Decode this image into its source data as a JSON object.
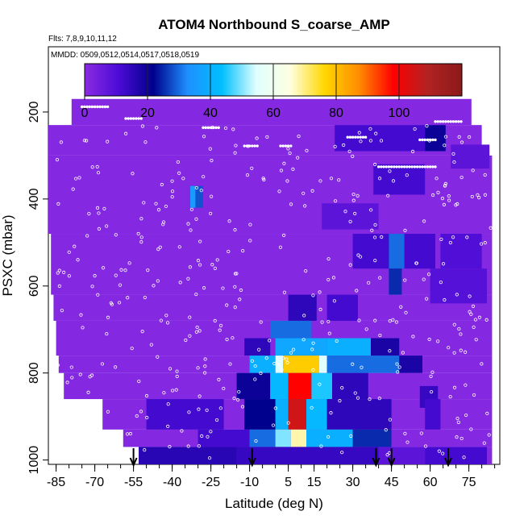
{
  "chart_data": {
    "type": "heatmap",
    "title": "ATOM4 Northbound S_coarse_AMP",
    "flights_note": "Flts: 7,8,9,10,11,12",
    "dates_note": "MMDD: 0509,0512,0514,0517,0518,0519",
    "xlabel": "Latitude (deg N)",
    "ylabel": "PSXC (mbar)",
    "xlim": [
      -88,
      87
    ],
    "ylim": [
      1010,
      50
    ],
    "y_reversed": true,
    "x_ticks": [
      "-85",
      "-70",
      "-55",
      "-40",
      "-25",
      "-10",
      "5",
      "15",
      "30",
      "45",
      "60",
      "75"
    ],
    "x_tick_values": [
      -85,
      -70,
      -55,
      -40,
      -25,
      -10,
      5,
      15,
      30,
      45,
      60,
      75
    ],
    "x_minor_step": 5,
    "y_ticks": [
      "200",
      "400",
      "600",
      "800",
      "1000"
    ],
    "y_tick_values": [
      200,
      400,
      600,
      800,
      1000
    ],
    "colorbar": {
      "min": 0,
      "max": 120,
      "ticks": [
        "0",
        "20",
        "40",
        "60",
        "80",
        "100"
      ],
      "tick_values": [
        0,
        20,
        40,
        60,
        80,
        100
      ],
      "colors": [
        "#8a2be2",
        "#4b0bd6",
        "#00008b",
        "#1e90ff",
        "#00bfff",
        "#e0ffff",
        "#ffffe0",
        "#ffd700",
        "#ff8c00",
        "#ff0000",
        "#b22222",
        "#8b1a1a"
      ]
    },
    "background_value": 1,
    "layers": [
      {
        "p": [
          170,
          230
        ],
        "x": [
          -79,
          76
        ]
      },
      {
        "p": [
          230,
          300
        ],
        "x": [
          -88,
          80
        ]
      },
      {
        "p": [
          300,
          480
        ],
        "x": [
          -88,
          84
        ]
      },
      {
        "p": [
          480,
          620
        ],
        "x": [
          -87,
          84
        ]
      },
      {
        "p": [
          620,
          680
        ],
        "x": [
          -86,
          84
        ]
      },
      {
        "p": [
          680,
          760
        ],
        "x": [
          -85,
          84
        ]
      },
      {
        "p": [
          760,
          800
        ],
        "x": [
          -84,
          84
        ]
      },
      {
        "p": [
          800,
          860
        ],
        "x": [
          -82,
          84
        ]
      },
      {
        "p": [
          860,
          930
        ],
        "x": [
          -67,
          84
        ]
      },
      {
        "p": [
          930,
          970
        ],
        "x": [
          -59,
          84
        ]
      },
      {
        "p": [
          970,
          1010
        ],
        "x": [
          -53,
          84
        ]
      }
    ],
    "patches": [
      {
        "x": [
          -33,
          -28
        ],
        "p": [
          370,
          420
        ],
        "v": 28
      },
      {
        "x": [
          -33,
          -31
        ],
        "p": [
          370,
          420
        ],
        "v": 35
      },
      {
        "x": [
          23,
          59
        ],
        "p": [
          230,
          290
        ],
        "v": 12
      },
      {
        "x": [
          58,
          66
        ],
        "p": [
          230,
          290
        ],
        "v": 20
      },
      {
        "x": [
          68,
          83
        ],
        "p": [
          275,
          330
        ],
        "v": 8
      },
      {
        "x": [
          38,
          58
        ],
        "p": [
          320,
          390
        ],
        "v": 12
      },
      {
        "x": [
          18,
          40
        ],
        "p": [
          410,
          470
        ],
        "v": 8
      },
      {
        "x": [
          30,
          62
        ],
        "p": [
          480,
          560
        ],
        "v": 12
      },
      {
        "x": [
          44,
          50
        ],
        "p": [
          480,
          560
        ],
        "v": 30
      },
      {
        "x": [
          64,
          80
        ],
        "p": [
          480,
          560
        ],
        "v": 10
      },
      {
        "x": [
          44,
          49
        ],
        "p": [
          560,
          620
        ],
        "v": 25
      },
      {
        "x": [
          60,
          82
        ],
        "p": [
          560,
          640
        ],
        "v": 9
      },
      {
        "x": [
          5,
          16
        ],
        "p": [
          620,
          680
        ],
        "v": 15
      },
      {
        "x": [
          20,
          32
        ],
        "p": [
          620,
          680
        ],
        "v": 12
      },
      {
        "x": [
          -2,
          14
        ],
        "p": [
          680,
          720
        ],
        "v": 30
      },
      {
        "x": [
          0,
          20
        ],
        "p": [
          720,
          760
        ],
        "v": 38
      },
      {
        "x": [
          20,
          37
        ],
        "p": [
          720,
          760
        ],
        "v": 40
      },
      {
        "x": [
          -12,
          -2
        ],
        "p": [
          720,
          760
        ],
        "v": 15
      },
      {
        "x": [
          37,
          48
        ],
        "p": [
          720,
          760
        ],
        "v": 18
      },
      {
        "x": [
          0,
          3
        ],
        "p": [
          760,
          800
        ],
        "v": 55
      },
      {
        "x": [
          3,
          17
        ],
        "p": [
          760,
          800
        ],
        "v": 78
      },
      {
        "x": [
          17,
          20
        ],
        "p": [
          760,
          800
        ],
        "v": 55
      },
      {
        "x": [
          -10,
          0
        ],
        "p": [
          760,
          800
        ],
        "v": 40
      },
      {
        "x": [
          20,
          48
        ],
        "p": [
          760,
          800
        ],
        "v": 30
      },
      {
        "x": [
          48,
          57
        ],
        "p": [
          760,
          800
        ],
        "v": 18
      },
      {
        "x": [
          -15,
          -2
        ],
        "p": [
          800,
          860
        ],
        "v": 20
      },
      {
        "x": [
          -2,
          5
        ],
        "p": [
          800,
          860
        ],
        "v": 42
      },
      {
        "x": [
          5,
          14
        ],
        "p": [
          800,
          860
        ],
        "v": 98
      },
      {
        "x": [
          14,
          22
        ],
        "p": [
          800,
          860
        ],
        "v": 45
      },
      {
        "x": [
          22,
          36
        ],
        "p": [
          800,
          860
        ],
        "v": 15
      },
      {
        "x": [
          56,
          63
        ],
        "p": [
          830,
          880
        ],
        "v": 14
      },
      {
        "x": [
          -50,
          -20
        ],
        "p": [
          860,
          930
        ],
        "v": 12
      },
      {
        "x": [
          -12,
          0
        ],
        "p": [
          860,
          930
        ],
        "v": 22
      },
      {
        "x": [
          0,
          5
        ],
        "p": [
          860,
          930
        ],
        "v": 40
      },
      {
        "x": [
          5,
          12
        ],
        "p": [
          860,
          930
        ],
        "v": 105
      },
      {
        "x": [
          12,
          20
        ],
        "p": [
          860,
          930
        ],
        "v": 42
      },
      {
        "x": [
          20,
          45
        ],
        "p": [
          860,
          930
        ],
        "v": 15
      },
      {
        "x": [
          58,
          64
        ],
        "p": [
          860,
          930
        ],
        "v": 12
      },
      {
        "x": [
          -30,
          -10
        ],
        "p": [
          930,
          970
        ],
        "v": 12
      },
      {
        "x": [
          -10,
          0
        ],
        "p": [
          930,
          970
        ],
        "v": 30
      },
      {
        "x": [
          0,
          6
        ],
        "p": [
          930,
          970
        ],
        "v": 50
      },
      {
        "x": [
          6,
          12
        ],
        "p": [
          930,
          970
        ],
        "v": 68
      },
      {
        "x": [
          12,
          30
        ],
        "p": [
          930,
          970
        ],
        "v": 40
      },
      {
        "x": [
          30,
          45
        ],
        "p": [
          930,
          970
        ],
        "v": 25
      },
      {
        "x": [
          -53,
          -15
        ],
        "p": [
          970,
          1010
        ],
        "v": 16
      },
      {
        "x": [
          -15,
          40
        ],
        "p": [
          970,
          1010
        ],
        "v": 14
      },
      {
        "x": [
          40,
          58
        ],
        "p": [
          970,
          1010
        ],
        "v": 8
      },
      {
        "x": [
          58,
          82
        ],
        "p": [
          970,
          1010
        ],
        "v": 12
      }
    ],
    "arrow_latitudes": [
      -55,
      -9,
      39,
      45,
      67
    ]
  }
}
